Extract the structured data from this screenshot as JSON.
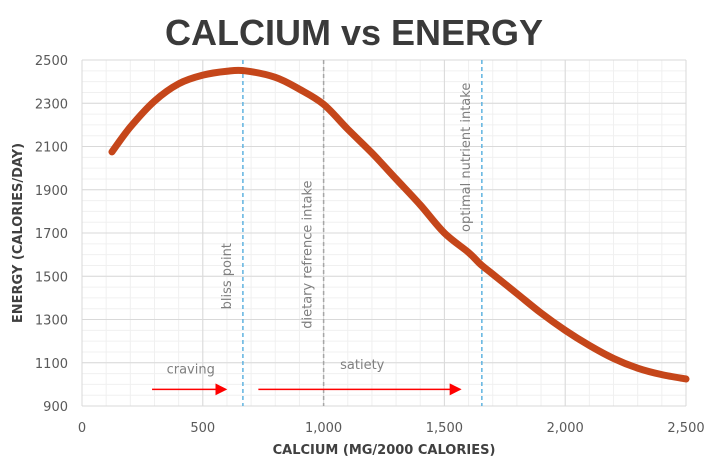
{
  "chart_data": {
    "type": "line",
    "title": "CALCIUM vs ENERGY",
    "xlabel": "CALCIUM (MG/2000 CALORIES)",
    "ylabel": "ENERGY (CALORIES/DAY)",
    "xlim": [
      0,
      2500
    ],
    "ylim": [
      900,
      2500
    ],
    "xticks": [
      0,
      500,
      1000,
      1500,
      2000,
      2500
    ],
    "xtick_labels": [
      "0",
      "500",
      "1,000",
      "1,500",
      "2,000",
      "2,500"
    ],
    "yticks": [
      900,
      1100,
      1300,
      1500,
      1700,
      1900,
      2100,
      2300,
      2500
    ],
    "ytick_labels": [
      "900",
      "1100",
      "1300",
      "1500",
      "1700",
      "1900",
      "2100",
      "2300",
      "2500"
    ],
    "grid": true,
    "series": [
      {
        "name": "energy",
        "color": "#c5461a",
        "x": [
          124,
          200,
          300,
          400,
          500,
          600,
          675,
          800,
          900,
          1000,
          1100,
          1200,
          1300,
          1400,
          1500,
          1600,
          1650,
          1700,
          1800,
          1900,
          2000,
          2100,
          2200,
          2300,
          2400,
          2500
        ],
        "y": [
          2075,
          2190,
          2310,
          2390,
          2430,
          2448,
          2450,
          2420,
          2365,
          2295,
          2180,
          2070,
          1950,
          1830,
          1700,
          1610,
          1555,
          1510,
          1420,
          1330,
          1250,
          1180,
          1120,
          1075,
          1045,
          1025
        ]
      }
    ],
    "vlines": [
      {
        "x": 666,
        "label": "bliss point",
        "color": "#5fb3e0",
        "label_y": 1500
      },
      {
        "x": 1000,
        "label": "dietary refrence intake",
        "color": "#a6a6a6",
        "label_y": 1600
      },
      {
        "x": 1655,
        "label": "optimal nutrient intake",
        "color": "#5fb3e0",
        "label_y": 2050
      }
    ],
    "arrows": [
      {
        "x0": 290,
        "x1": 620,
        "y": 977,
        "label": "craving",
        "label_x": 450,
        "label_y": 1050,
        "color": "#ff0000"
      },
      {
        "x0": 730,
        "x1": 1590,
        "y": 977,
        "label": "satiety",
        "label_x": 1160,
        "label_y": 1070,
        "color": "#ff0000"
      }
    ]
  }
}
